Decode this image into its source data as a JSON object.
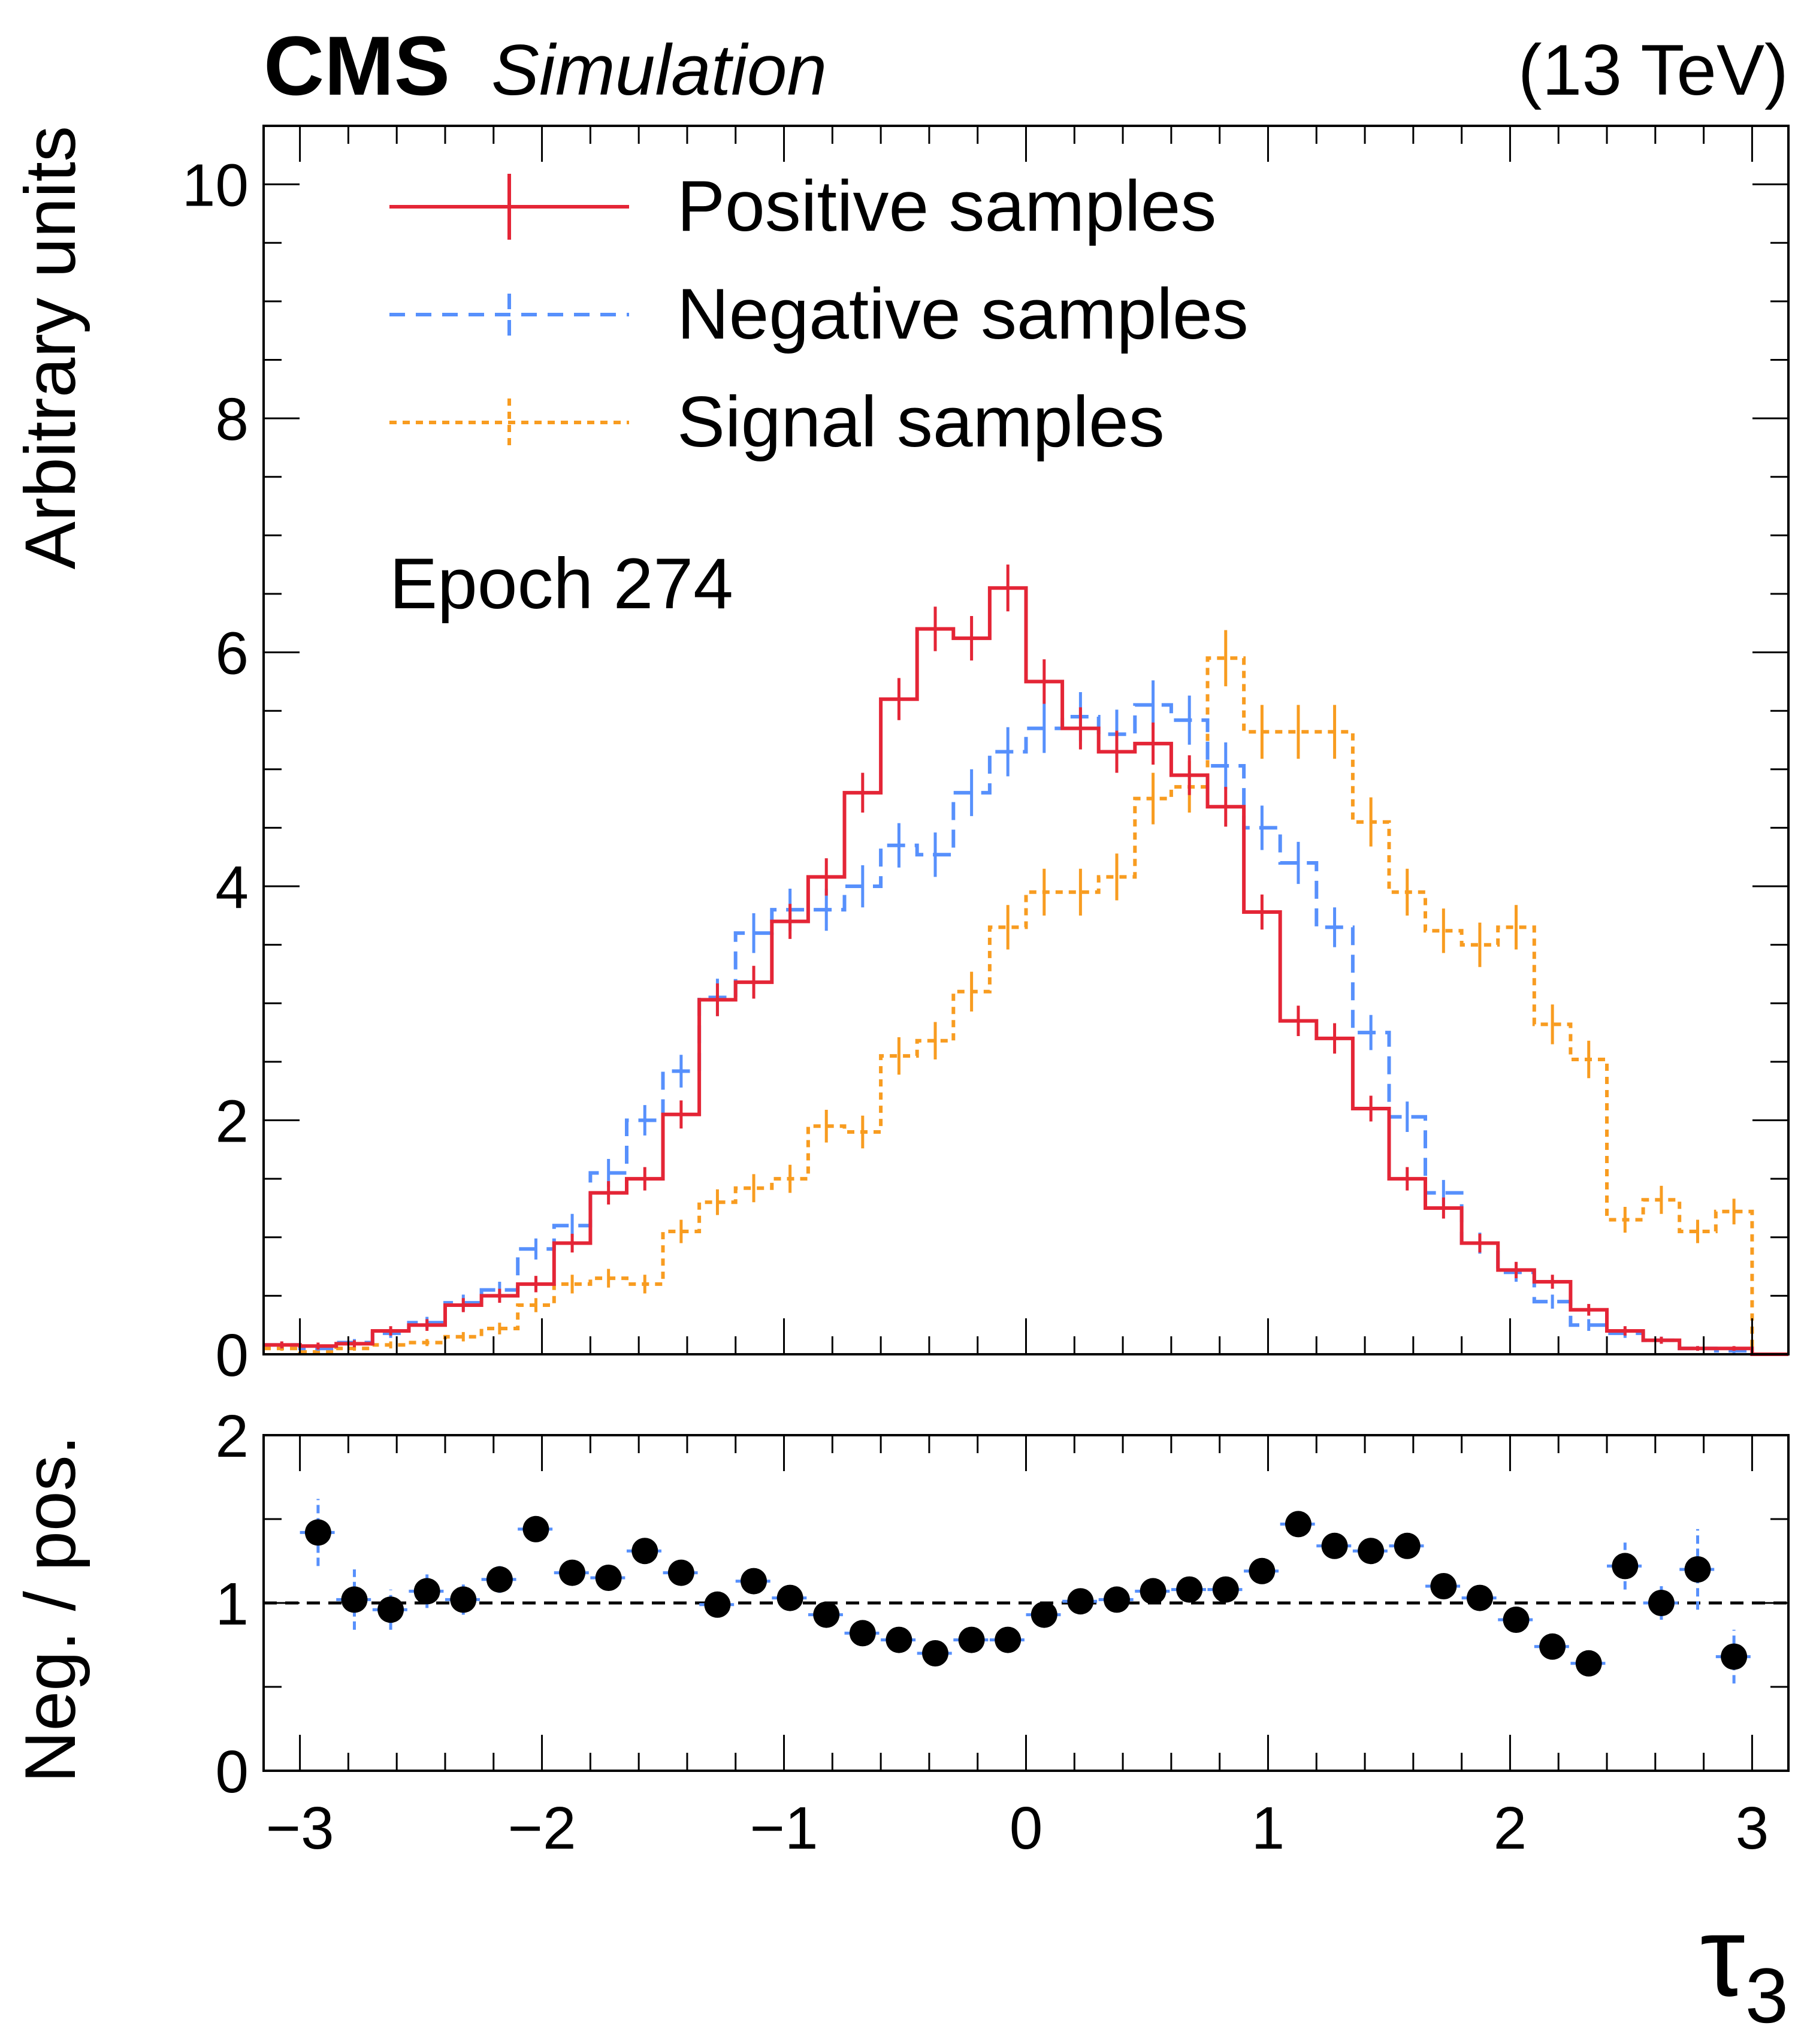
{
  "header": {
    "experiment": "CMS",
    "tag": "Simulation",
    "energy": "(13 TeV)"
  },
  "annotation": "Epoch 274",
  "colors": {
    "positive": "#e42536",
    "negative": "#5790fc",
    "signal": "#f89c20",
    "ratio_points": "#000000"
  },
  "chart_data": [
    {
      "type": "histogram",
      "panel": "main",
      "ylabel": "Arbitrary units",
      "xlim": [
        -3.15,
        3.15
      ],
      "ylim": [
        0,
        10.5
      ],
      "yticks": [
        0,
        2,
        4,
        6,
        8,
        10
      ],
      "ytick_labels": [
        "0",
        "2",
        "4",
        "6",
        "8",
        "10"
      ],
      "bin_edges": [
        -3.15,
        -3.0,
        -2.85,
        -2.7,
        -2.55,
        -2.4,
        -2.25,
        -2.1,
        -1.95,
        -1.8,
        -1.65,
        -1.5,
        -1.35,
        -1.2,
        -1.05,
        -0.9,
        -0.75,
        -0.6,
        -0.45,
        -0.3,
        -0.15,
        0.0,
        0.15,
        0.3,
        0.45,
        0.6,
        0.75,
        0.9,
        1.05,
        1.2,
        1.35,
        1.5,
        1.65,
        1.8,
        1.95,
        2.1,
        2.25,
        2.4,
        2.55,
        2.7,
        2.85,
        3.0,
        3.15
      ],
      "series": [
        {
          "name": "Positive samples",
          "color_key": "positive",
          "dash": "solid",
          "values": [
            0.08,
            0.07,
            0.09,
            0.2,
            0.25,
            0.42,
            0.5,
            0.6,
            0.95,
            1.38,
            1.5,
            2.05,
            3.03,
            3.18,
            3.7,
            4.08,
            4.8,
            5.6,
            6.2,
            6.12,
            6.55,
            5.75,
            5.35,
            5.15,
            5.22,
            4.95,
            4.68,
            3.78,
            2.85,
            2.7,
            2.1,
            1.5,
            1.25,
            0.95,
            0.72,
            0.62,
            0.38,
            0.2,
            0.12,
            0.05,
            0.05,
            0.0
          ],
          "errors": [
            0.03,
            0.03,
            0.03,
            0.04,
            0.05,
            0.06,
            0.06,
            0.07,
            0.08,
            0.1,
            0.1,
            0.12,
            0.14,
            0.14,
            0.15,
            0.16,
            0.17,
            0.18,
            0.19,
            0.19,
            0.2,
            0.19,
            0.18,
            0.18,
            0.18,
            0.17,
            0.17,
            0.15,
            0.13,
            0.13,
            0.11,
            0.1,
            0.09,
            0.08,
            0.07,
            0.06,
            0.05,
            0.04,
            0.03,
            0.02,
            0.02,
            0.0
          ]
        },
        {
          "name": "Negative samples",
          "color_key": "negative",
          "dash": "dashed",
          "values": [
            0.08,
            0.05,
            0.1,
            0.18,
            0.27,
            0.44,
            0.55,
            0.9,
            1.1,
            1.55,
            2.0,
            2.42,
            3.05,
            3.6,
            3.8,
            3.8,
            4.0,
            4.35,
            4.27,
            4.8,
            5.15,
            5.35,
            5.45,
            5.3,
            5.55,
            5.42,
            5.03,
            4.5,
            4.2,
            3.65,
            2.75,
            2.03,
            1.38,
            0.95,
            0.7,
            0.45,
            0.25,
            0.18,
            0.12,
            0.05,
            0.03,
            0.0
          ],
          "errors": [
            0.03,
            0.02,
            0.03,
            0.04,
            0.05,
            0.07,
            0.07,
            0.09,
            0.1,
            0.12,
            0.13,
            0.14,
            0.16,
            0.17,
            0.18,
            0.18,
            0.18,
            0.19,
            0.19,
            0.2,
            0.21,
            0.21,
            0.21,
            0.21,
            0.21,
            0.21,
            0.2,
            0.19,
            0.18,
            0.17,
            0.15,
            0.13,
            0.11,
            0.09,
            0.08,
            0.06,
            0.05,
            0.04,
            0.03,
            0.02,
            0.02,
            0.0
          ]
        },
        {
          "name": "Signal samples",
          "color_key": "signal",
          "dash": "dotted",
          "values": [
            0.05,
            0.02,
            0.05,
            0.08,
            0.1,
            0.15,
            0.22,
            0.42,
            0.6,
            0.65,
            0.6,
            1.05,
            1.3,
            1.42,
            1.5,
            1.95,
            1.9,
            2.55,
            2.68,
            3.1,
            3.65,
            3.95,
            3.95,
            4.08,
            4.75,
            4.85,
            5.95,
            5.32,
            5.32,
            5.32,
            4.55,
            3.95,
            3.62,
            3.5,
            3.65,
            2.82,
            2.52,
            1.15,
            1.32,
            1.05,
            1.22,
            0.0
          ],
          "errors": [
            0.02,
            0.01,
            0.02,
            0.03,
            0.03,
            0.04,
            0.05,
            0.06,
            0.08,
            0.08,
            0.08,
            0.1,
            0.11,
            0.12,
            0.12,
            0.14,
            0.14,
            0.16,
            0.16,
            0.17,
            0.19,
            0.2,
            0.2,
            0.2,
            0.22,
            0.22,
            0.24,
            0.23,
            0.23,
            0.23,
            0.21,
            0.2,
            0.19,
            0.19,
            0.19,
            0.17,
            0.16,
            0.11,
            0.12,
            0.1,
            0.11,
            0.0
          ]
        }
      ]
    },
    {
      "type": "scatter",
      "panel": "ratio",
      "ylabel": "Neg. / pos.",
      "xlabel": "τ",
      "xlabel_subscript": "3",
      "xlim": [
        -3.15,
        3.15
      ],
      "ylim": [
        0,
        2
      ],
      "yticks": [
        0,
        1,
        2
      ],
      "ytick_labels": [
        "0",
        "1",
        "2"
      ],
      "xticks": [
        -3,
        -2,
        -1,
        0,
        1,
        2,
        3
      ],
      "xtick_labels": [
        "−3",
        "−2",
        "−1",
        "0",
        "1",
        "2",
        "3"
      ],
      "reference_line": 1,
      "x": [
        -2.925,
        -2.775,
        -2.625,
        -2.475,
        -2.325,
        -2.175,
        -2.025,
        -1.875,
        -1.725,
        -1.575,
        -1.425,
        -1.275,
        -1.125,
        -0.975,
        -0.825,
        -0.675,
        -0.525,
        -0.375,
        -0.225,
        -0.075,
        0.075,
        0.225,
        0.375,
        0.525,
        0.675,
        0.825,
        0.975,
        1.125,
        1.275,
        1.425,
        1.575,
        1.725,
        1.875,
        2.025,
        2.175,
        2.325,
        2.475,
        2.625,
        2.775,
        2.925
      ],
      "values": [
        1.42,
        1.02,
        0.96,
        1.07,
        1.02,
        1.14,
        1.44,
        1.18,
        1.15,
        1.31,
        1.18,
        0.99,
        1.13,
        1.03,
        0.93,
        0.82,
        0.78,
        0.7,
        0.78,
        0.78,
        0.93,
        1.01,
        1.02,
        1.07,
        1.08,
        1.08,
        1.19,
        1.47,
        1.34,
        1.31,
        1.34,
        1.1,
        1.03,
        0.9,
        0.74,
        0.64,
        1.22,
        1.0,
        1.2,
        0.68
      ],
      "errors": [
        0.2,
        0.18,
        0.12,
        0.1,
        0.09,
        0.08,
        0.07,
        0.06,
        0.05,
        0.05,
        0.04,
        0.04,
        0.04,
        0.04,
        0.04,
        0.03,
        0.03,
        0.03,
        0.03,
        0.03,
        0.03,
        0.03,
        0.03,
        0.03,
        0.03,
        0.03,
        0.04,
        0.04,
        0.04,
        0.04,
        0.05,
        0.05,
        0.06,
        0.06,
        0.07,
        0.06,
        0.14,
        0.1,
        0.24,
        0.16
      ]
    }
  ]
}
